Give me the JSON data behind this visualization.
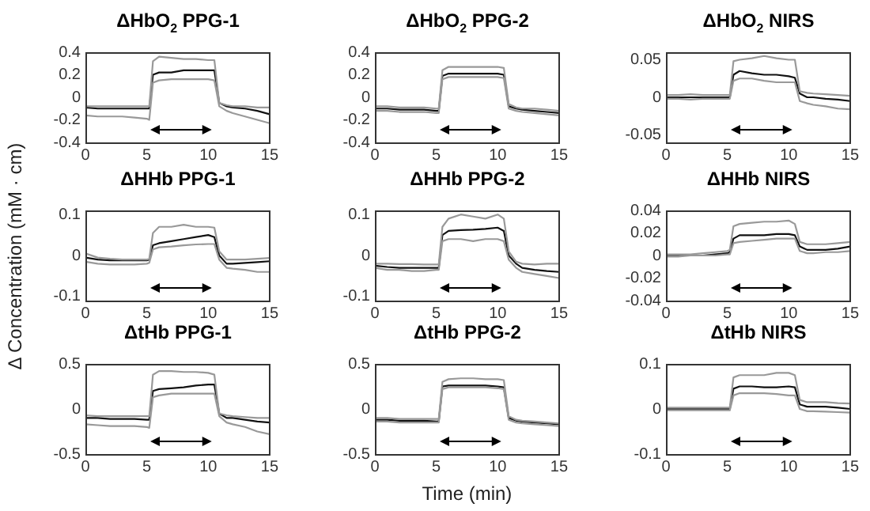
{
  "chart_data": [
    {
      "type": "line",
      "title": "ΔHbO$_{2}$ PPG-1",
      "x": [
        0,
        1,
        2,
        3,
        4,
        5,
        5.2,
        5.5,
        6,
        7,
        8,
        9,
        10,
        10.5,
        10.9,
        11.5,
        12,
        13,
        14,
        15
      ],
      "xlim": [
        0,
        15
      ],
      "xticks": [
        0,
        5,
        10,
        15
      ],
      "ylim": [
        -0.4,
        0.4
      ],
      "yticks": [
        -0.4,
        -0.2,
        0,
        0.2,
        0.4
      ],
      "series": [
        {
          "color": "#999999",
          "values": [
            -0.08,
            -0.08,
            -0.08,
            -0.08,
            -0.08,
            -0.08,
            -0.08,
            0.32,
            0.36,
            0.35,
            0.34,
            0.34,
            0.33,
            0.33,
            -0.05,
            -0.07,
            -0.08,
            -0.08,
            -0.09,
            -0.09
          ]
        },
        {
          "color": "#999999",
          "values": [
            -0.16,
            -0.17,
            -0.17,
            -0.17,
            -0.18,
            -0.19,
            -0.2,
            0.13,
            0.15,
            0.16,
            0.16,
            0.16,
            0.16,
            0.15,
            -0.08,
            -0.12,
            -0.14,
            -0.17,
            -0.2,
            -0.23
          ]
        },
        {
          "color": "#111111",
          "values": [
            -0.09,
            -0.1,
            -0.1,
            -0.1,
            -0.1,
            -0.1,
            -0.1,
            0.2,
            0.22,
            0.22,
            0.24,
            0.24,
            0.24,
            0.24,
            -0.05,
            -0.08,
            -0.09,
            -0.1,
            -0.12,
            -0.15
          ]
        }
      ]
    },
    {
      "type": "line",
      "title": "ΔHbO$_{2}$ PPG-2",
      "x": [
        0,
        1,
        2,
        3,
        4,
        5,
        5.2,
        5.5,
        6,
        7,
        8,
        9,
        10,
        10.5,
        10.9,
        11.5,
        12,
        13,
        14,
        15
      ],
      "xlim": [
        0,
        15
      ],
      "xticks": [
        0,
        5,
        10,
        15
      ],
      "ylim": [
        -0.4,
        0.4
      ],
      "yticks": [
        -0.4,
        -0.2,
        0,
        0.2,
        0.4
      ],
      "series": [
        {
          "color": "#999999",
          "values": [
            -0.08,
            -0.08,
            -0.09,
            -0.09,
            -0.09,
            -0.1,
            -0.1,
            0.24,
            0.27,
            0.27,
            0.27,
            0.27,
            0.27,
            0.26,
            -0.06,
            -0.09,
            -0.1,
            -0.1,
            -0.11,
            -0.12
          ]
        },
        {
          "color": "#999999",
          "values": [
            -0.12,
            -0.12,
            -0.13,
            -0.13,
            -0.13,
            -0.14,
            -0.14,
            0.16,
            0.18,
            0.18,
            0.18,
            0.18,
            0.18,
            0.17,
            -0.1,
            -0.12,
            -0.13,
            -0.14,
            -0.15,
            -0.16
          ]
        },
        {
          "color": "#111111",
          "values": [
            -0.1,
            -0.1,
            -0.11,
            -0.11,
            -0.11,
            -0.12,
            -0.12,
            0.19,
            0.21,
            0.21,
            0.21,
            0.21,
            0.21,
            0.2,
            -0.08,
            -0.1,
            -0.11,
            -0.12,
            -0.13,
            -0.14
          ]
        }
      ]
    },
    {
      "type": "line",
      "title": "ΔHbO$_{2}$ NIRS",
      "x": [
        0,
        1,
        2,
        3,
        4,
        5,
        5.2,
        5.5,
        6,
        7,
        8,
        9,
        10,
        10.5,
        10.9,
        11.5,
        12,
        13,
        14,
        15
      ],
      "xlim": [
        0,
        15
      ],
      "xticks": [
        0,
        5,
        10,
        15
      ],
      "ylim": [
        -0.06,
        0.06
      ],
      "yticks": [
        -0.05,
        0,
        0.05
      ],
      "series": [
        {
          "color": "#999999",
          "values": [
            0.003,
            0.003,
            0.004,
            0.003,
            0.003,
            0.003,
            0.003,
            0.048,
            0.05,
            0.052,
            0.055,
            0.052,
            0.05,
            0.05,
            0.008,
            0.006,
            0.005,
            0.004,
            0.003,
            0.002
          ]
        },
        {
          "color": "#999999",
          "values": [
            -0.002,
            -0.002,
            -0.003,
            -0.002,
            -0.002,
            -0.002,
            -0.002,
            0.022,
            0.025,
            0.025,
            0.022,
            0.02,
            0.02,
            0.02,
            -0.005,
            -0.008,
            -0.01,
            -0.012,
            -0.015,
            -0.016
          ]
        },
        {
          "color": "#111111",
          "values": [
            0,
            0,
            0,
            0,
            0,
            0,
            0,
            0.03,
            0.035,
            0.032,
            0.03,
            0.03,
            0.028,
            0.026,
            0.005,
            0,
            0,
            -0.002,
            -0.003,
            -0.005
          ]
        }
      ]
    },
    {
      "type": "line",
      "title": "ΔHHb PPG-1",
      "ylabel": "Δ Concentration (mM · cm)",
      "x": [
        0,
        1,
        2,
        3,
        4,
        5,
        5.2,
        5.5,
        6,
        7,
        8,
        9,
        10,
        10.5,
        10.9,
        11.5,
        12,
        13,
        14,
        15
      ],
      "xlim": [
        0,
        15
      ],
      "xticks": [
        0,
        5,
        10,
        15
      ],
      "ylim": [
        -0.11,
        0.11
      ],
      "yticks": [
        -0.1,
        0,
        0.1
      ],
      "series": [
        {
          "color": "#999999",
          "values": [
            0.005,
            -0.005,
            -0.008,
            -0.01,
            -0.01,
            -0.01,
            -0.008,
            0.055,
            0.07,
            0.07,
            0.075,
            0.07,
            0.07,
            0.068,
            0.01,
            -0.01,
            -0.01,
            -0.01,
            -0.008,
            -0.006
          ]
        },
        {
          "color": "#999999",
          "values": [
            -0.015,
            -0.02,
            -0.022,
            -0.022,
            -0.022,
            -0.02,
            -0.018,
            0.015,
            0.02,
            0.022,
            0.025,
            0.027,
            0.028,
            0.028,
            -0.01,
            -0.03,
            -0.032,
            -0.035,
            -0.04,
            -0.04
          ]
        },
        {
          "color": "#111111",
          "values": [
            -0.005,
            -0.01,
            -0.012,
            -0.012,
            -0.012,
            -0.012,
            -0.01,
            0.025,
            0.03,
            0.035,
            0.04,
            0.045,
            0.05,
            0.045,
            0,
            -0.02,
            -0.02,
            -0.018,
            -0.016,
            -0.014
          ]
        }
      ]
    },
    {
      "type": "line",
      "title": "ΔHHb PPG-2",
      "x": [
        0,
        1,
        2,
        3,
        4,
        5,
        5.2,
        5.5,
        6,
        7,
        8,
        9,
        10,
        10.5,
        10.9,
        11.5,
        12,
        13,
        14,
        15
      ],
      "xlim": [
        0,
        15
      ],
      "xticks": [
        0,
        5,
        10,
        15
      ],
      "ylim": [
        -0.11,
        0.11
      ],
      "yticks": [
        -0.1,
        0,
        0.1
      ],
      "series": [
        {
          "color": "#999999",
          "values": [
            -0.02,
            -0.02,
            -0.021,
            -0.021,
            -0.022,
            -0.022,
            -0.022,
            0.07,
            0.09,
            0.1,
            0.095,
            0.09,
            0.1,
            0.09,
            0.01,
            -0.015,
            -0.02,
            -0.022,
            -0.02,
            -0.02
          ]
        },
        {
          "color": "#999999",
          "values": [
            -0.03,
            -0.035,
            -0.035,
            -0.038,
            -0.038,
            -0.035,
            -0.035,
            0.035,
            0.04,
            0.04,
            0.035,
            0.04,
            0.04,
            0.035,
            -0.01,
            -0.03,
            -0.04,
            -0.045,
            -0.05,
            -0.055
          ]
        },
        {
          "color": "#111111",
          "values": [
            -0.025,
            -0.028,
            -0.03,
            -0.03,
            -0.03,
            -0.03,
            -0.03,
            0.05,
            0.06,
            0.062,
            0.063,
            0.065,
            0.068,
            0.06,
            0,
            -0.02,
            -0.03,
            -0.035,
            -0.038,
            -0.04
          ]
        }
      ]
    },
    {
      "type": "line",
      "title": "ΔHHb NIRS",
      "x": [
        0,
        1,
        2,
        3,
        4,
        5,
        5.2,
        5.5,
        6,
        7,
        8,
        9,
        10,
        10.5,
        10.9,
        11.5,
        12,
        13,
        14,
        15
      ],
      "xlim": [
        0,
        15
      ],
      "xticks": [
        0,
        5,
        10,
        15
      ],
      "ylim": [
        -0.04,
        0.04
      ],
      "yticks": [
        -0.04,
        -0.02,
        0,
        0.02,
        0.04
      ],
      "series": [
        {
          "color": "#999999",
          "values": [
            0.001,
            0.001,
            0.001,
            0.002,
            0.003,
            0.004,
            0.005,
            0.026,
            0.028,
            0.029,
            0.03,
            0.03,
            0.031,
            0.028,
            0.012,
            0.01,
            0.01,
            0.01,
            0.011,
            0.012
          ]
        },
        {
          "color": "#999999",
          "values": [
            -0.001,
            -0.001,
            0,
            0,
            0,
            0.001,
            0.001,
            0.011,
            0.012,
            0.013,
            0.014,
            0.015,
            0.015,
            0.015,
            0.004,
            0.002,
            0.002,
            0.003,
            0.003,
            0.004
          ]
        },
        {
          "color": "#111111",
          "values": [
            0,
            0,
            0,
            0,
            0.001,
            0.002,
            0.003,
            0.015,
            0.018,
            0.018,
            0.018,
            0.019,
            0.019,
            0.018,
            0.008,
            0.005,
            0.005,
            0.005,
            0.006,
            0.008
          ]
        }
      ]
    },
    {
      "type": "line",
      "title": "ΔtHb PPG-1",
      "x": [
        0,
        1,
        2,
        3,
        4,
        5,
        5.2,
        5.5,
        6,
        7,
        8,
        9,
        10,
        10.5,
        10.9,
        11.5,
        12,
        13,
        14,
        15
      ],
      "xlim": [
        0,
        15
      ],
      "xticks": [
        0,
        5,
        10,
        15
      ],
      "ylim": [
        -0.5,
        0.5
      ],
      "yticks": [
        -0.5,
        0,
        0.5
      ],
      "series": [
        {
          "color": "#999999",
          "values": [
            -0.07,
            -0.08,
            -0.08,
            -0.08,
            -0.08,
            -0.08,
            -0.08,
            0.38,
            0.42,
            0.42,
            0.41,
            0.41,
            0.4,
            0.38,
            -0.05,
            -0.07,
            -0.08,
            -0.09,
            -0.1,
            -0.1
          ]
        },
        {
          "color": "#999999",
          "values": [
            -0.17,
            -0.18,
            -0.19,
            -0.19,
            -0.19,
            -0.2,
            -0.21,
            0.13,
            0.15,
            0.17,
            0.17,
            0.17,
            0.17,
            0.17,
            -0.08,
            -0.15,
            -0.17,
            -0.2,
            -0.25,
            -0.28
          ]
        },
        {
          "color": "#111111",
          "values": [
            -0.1,
            -0.1,
            -0.11,
            -0.11,
            -0.11,
            -0.12,
            -0.12,
            0.2,
            0.22,
            0.23,
            0.24,
            0.26,
            0.27,
            0.27,
            -0.05,
            -0.1,
            -0.1,
            -0.12,
            -0.14,
            -0.15
          ]
        }
      ]
    },
    {
      "type": "line",
      "title": "ΔtHb PPG-2",
      "xlabel": "Time (min)",
      "x": [
        0,
        1,
        2,
        3,
        4,
        5,
        5.2,
        5.5,
        6,
        7,
        8,
        9,
        10,
        10.5,
        10.9,
        11.5,
        12,
        13,
        14,
        15
      ],
      "xlim": [
        0,
        15
      ],
      "xticks": [
        0,
        5,
        10,
        15
      ],
      "ylim": [
        -0.5,
        0.5
      ],
      "yticks": [
        -0.5,
        0,
        0.5
      ],
      "series": [
        {
          "color": "#999999",
          "values": [
            -0.1,
            -0.1,
            -0.11,
            -0.11,
            -0.11,
            -0.11,
            -0.11,
            0.3,
            0.33,
            0.34,
            0.34,
            0.33,
            0.33,
            0.32,
            -0.08,
            -0.12,
            -0.13,
            -0.14,
            -0.15,
            -0.16
          ]
        },
        {
          "color": "#999999",
          "values": [
            -0.14,
            -0.14,
            -0.15,
            -0.15,
            -0.15,
            -0.15,
            -0.15,
            0.22,
            0.24,
            0.24,
            0.24,
            0.24,
            0.23,
            0.22,
            -0.12,
            -0.15,
            -0.16,
            -0.17,
            -0.18,
            -0.19
          ]
        },
        {
          "color": "#111111",
          "values": [
            -0.12,
            -0.12,
            -0.13,
            -0.13,
            -0.13,
            -0.14,
            -0.14,
            0.25,
            0.26,
            0.26,
            0.26,
            0.26,
            0.25,
            0.24,
            -0.1,
            -0.13,
            -0.14,
            -0.15,
            -0.16,
            -0.17
          ]
        }
      ]
    },
    {
      "type": "line",
      "title": "ΔtHb NIRS",
      "x": [
        0,
        1,
        2,
        3,
        4,
        5,
        5.2,
        5.5,
        6,
        7,
        8,
        9,
        10,
        10.5,
        10.9,
        11.5,
        12,
        13,
        14,
        15
      ],
      "xlim": [
        0,
        15
      ],
      "xticks": [
        0,
        5,
        10,
        15
      ],
      "ylim": [
        -0.1,
        0.1
      ],
      "yticks": [
        -0.1,
        0,
        0.1
      ],
      "series": [
        {
          "color": "#999999",
          "values": [
            0.003,
            0.003,
            0.003,
            0.003,
            0.003,
            0.003,
            0.003,
            0.07,
            0.075,
            0.075,
            0.075,
            0.08,
            0.08,
            0.075,
            0.02,
            0.015,
            0.015,
            0.015,
            0.013,
            0.012
          ]
        },
        {
          "color": "#999999",
          "values": [
            -0.003,
            -0.003,
            -0.003,
            -0.003,
            -0.003,
            -0.003,
            -0.003,
            0.03,
            0.035,
            0.035,
            0.035,
            0.033,
            0.03,
            0.03,
            0,
            -0.005,
            -0.005,
            -0.006,
            -0.007,
            -0.008
          ]
        },
        {
          "color": "#111111",
          "values": [
            0,
            0,
            0,
            0,
            0,
            0,
            0,
            0.045,
            0.05,
            0.05,
            0.048,
            0.048,
            0.05,
            0.048,
            0.01,
            0.005,
            0.005,
            0.005,
            0.003,
            0
          ]
        }
      ]
    }
  ]
}
